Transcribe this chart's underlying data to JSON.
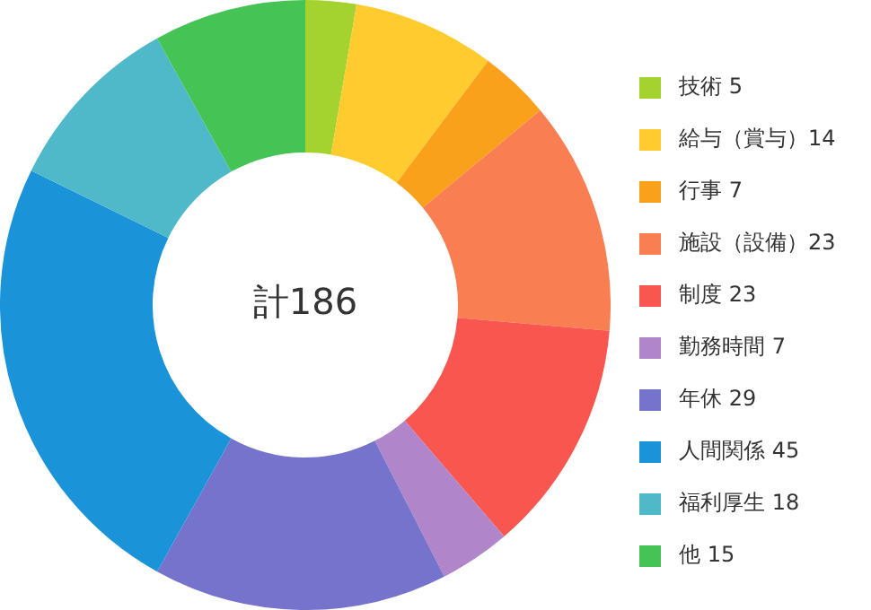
{
  "chart_data": {
    "type": "donut",
    "categories": [
      "技術 5",
      "給与（賞与）14",
      "行事 7",
      "施設（設備）23",
      "制度 23",
      "勤務時間 7",
      "年休 29",
      "人間関係 45",
      "福利厚生 18",
      "他 15"
    ],
    "values": [
      5,
      14,
      7,
      23,
      23,
      7,
      29,
      45,
      18,
      15
    ],
    "colors": [
      "#a4d22e",
      "#ffcb2f",
      "#f9a11b",
      "#f97e52",
      "#f9564f",
      "#b085c9",
      "#7673cd",
      "#1b93d8",
      "#4fb8c9",
      "#45c455"
    ],
    "annotations": [
      "計186"
    ],
    "legend": "right"
  }
}
